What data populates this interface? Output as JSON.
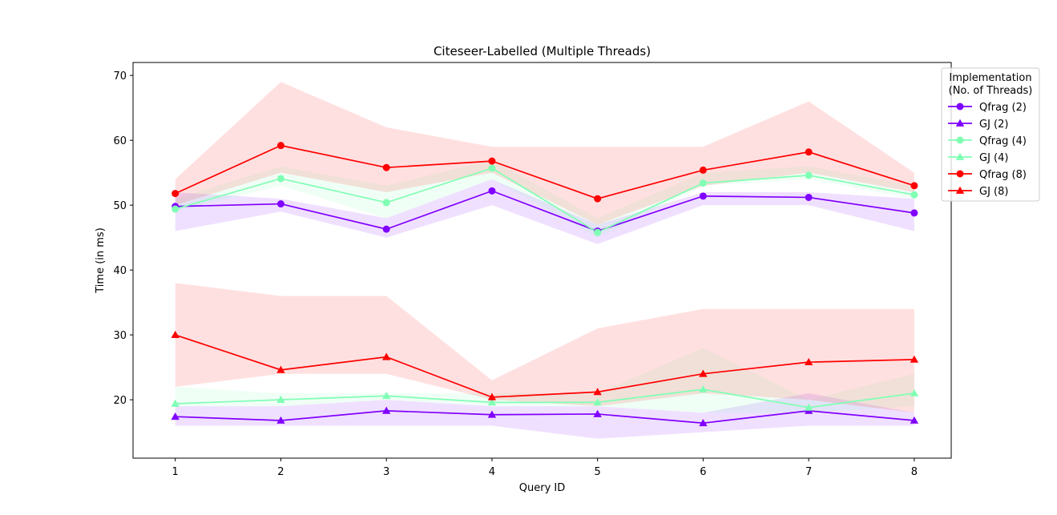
{
  "chart_data": {
    "type": "line",
    "title": "Citeseer-Labelled (Multiple Threads)",
    "xlabel": "Query ID",
    "ylabel": "Time (in ms)",
    "x": [
      1,
      2,
      3,
      4,
      5,
      6,
      7,
      8
    ],
    "xlim": [
      0.6,
      8.35
    ],
    "ylim": [
      11,
      72
    ],
    "yticks": [
      20,
      30,
      40,
      50,
      60,
      70
    ],
    "grid": false,
    "legend": {
      "title_line1": "Implementation",
      "title_line2": "(No. of Threads)",
      "placement": "outside-top-right"
    },
    "series": [
      {
        "name": "Qfrag (2)",
        "marker": "circle",
        "color": "#8000ff",
        "values": [
          49.8,
          50.2,
          46.3,
          52.2,
          46.0,
          51.4,
          51.2,
          48.8
        ],
        "band_low": [
          46,
          49,
          45,
          50,
          44,
          50,
          50,
          46
        ],
        "band_high": [
          52,
          51,
          48,
          54,
          47,
          52,
          52,
          51
        ]
      },
      {
        "name": "GJ (2)",
        "marker": "triangle",
        "color": "#8000ff",
        "values": [
          17.4,
          16.8,
          18.3,
          17.7,
          17.8,
          16.4,
          18.3,
          16.8
        ],
        "band_low": [
          16,
          16,
          16,
          16,
          14,
          15,
          16,
          16
        ],
        "band_high": [
          19,
          19,
          20,
          19,
          19,
          18,
          21,
          18
        ]
      },
      {
        "name": "Qfrag (4)",
        "marker": "circle",
        "color": "#80ffb4",
        "values": [
          49.4,
          54.1,
          50.4,
          55.7,
          45.8,
          53.4,
          54.6,
          51.6
        ],
        "band_low": [
          49,
          53,
          48,
          54,
          45,
          53,
          54,
          51
        ],
        "band_high": [
          51,
          56,
          53,
          57,
          48,
          55,
          56,
          53
        ]
      },
      {
        "name": "GJ (4)",
        "marker": "triangle",
        "color": "#80ffb4",
        "values": [
          19.4,
          20.0,
          20.6,
          19.6,
          19.6,
          21.6,
          18.8,
          21.0
        ],
        "band_low": [
          19,
          19,
          20,
          19,
          19,
          18,
          18,
          19
        ],
        "band_high": [
          22,
          21,
          21,
          21,
          21,
          28,
          20,
          24
        ]
      },
      {
        "name": "Qfrag (8)",
        "marker": "circle",
        "color": "#ff0000",
        "values": [
          51.8,
          59.2,
          55.8,
          56.8,
          51.0,
          55.4,
          58.2,
          53.0
        ],
        "band_low": [
          50,
          55,
          52,
          55,
          47,
          53,
          55,
          52
        ],
        "band_high": [
          54,
          69,
          62,
          59,
          59,
          59,
          66,
          55
        ]
      },
      {
        "name": "GJ (8)",
        "marker": "triangle",
        "color": "#ff0000",
        "values": [
          30.0,
          24.6,
          26.6,
          20.4,
          21.2,
          24.0,
          25.8,
          26.2
        ],
        "band_low": [
          22,
          24,
          24,
          20,
          19,
          21,
          20,
          18
        ],
        "band_high": [
          38,
          36,
          36,
          23,
          31,
          34,
          34,
          34
        ]
      }
    ]
  }
}
